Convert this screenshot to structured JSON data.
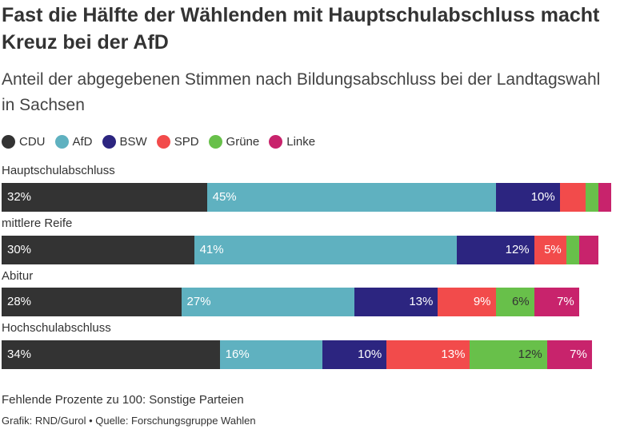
{
  "title": "Fast die Hälfte der Wählenden mit Hauptschulabschluss macht Kreuz bei der AfD",
  "subtitle": "Anteil der abgegebenen Stimmen nach Bildungsabschluss bei der Landtagswahl in Sachsen",
  "footnote": "Fehlende Prozente zu 100: Sonstige Parteien",
  "credit": "Grafik: RND/Gurol • Quelle: Forschungsgruppe Wahlen",
  "chart_data": {
    "type": "bar",
    "orientation": "horizontal",
    "stacked": true,
    "unit": "%",
    "categories": [
      "Hauptschulabschluss",
      "mittlere Reife",
      "Abitur",
      "Hochschulabschluss"
    ],
    "series": [
      {
        "name": "CDU",
        "color": "#333333",
        "label_color": "#ffffff",
        "values": [
          32,
          30,
          28,
          34
        ],
        "labels": [
          "32%",
          "30%",
          "28%",
          "34%"
        ]
      },
      {
        "name": "AfD",
        "color": "#5fb1c0",
        "label_color": "#ffffff",
        "values": [
          45,
          41,
          27,
          16
        ],
        "labels": [
          "45%",
          "41%",
          "27%",
          "16%"
        ]
      },
      {
        "name": "BSW",
        "color": "#2c2580",
        "label_color": "#ffffff",
        "values": [
          10,
          12,
          13,
          10
        ],
        "labels": [
          "10%",
          "12%",
          "13%",
          "10%"
        ]
      },
      {
        "name": "SPD",
        "color": "#f24b4b",
        "label_color": "#ffffff",
        "values": [
          4,
          5,
          9,
          13
        ],
        "labels": [
          "",
          "5%",
          "9%",
          "13%"
        ]
      },
      {
        "name": "Grüne",
        "color": "#68c04a",
        "label_color": "#333333",
        "values": [
          2,
          2,
          6,
          12
        ],
        "labels": [
          "",
          "",
          "6%",
          "12%"
        ]
      },
      {
        "name": "Linke",
        "color": "#c8236c",
        "label_color": "#ffffff",
        "values": [
          2,
          3,
          7,
          7
        ],
        "labels": [
          "",
          "",
          "7%",
          "7%"
        ]
      }
    ],
    "xlim": [
      0,
      100
    ],
    "grid": false,
    "legend_position": "top-left"
  }
}
